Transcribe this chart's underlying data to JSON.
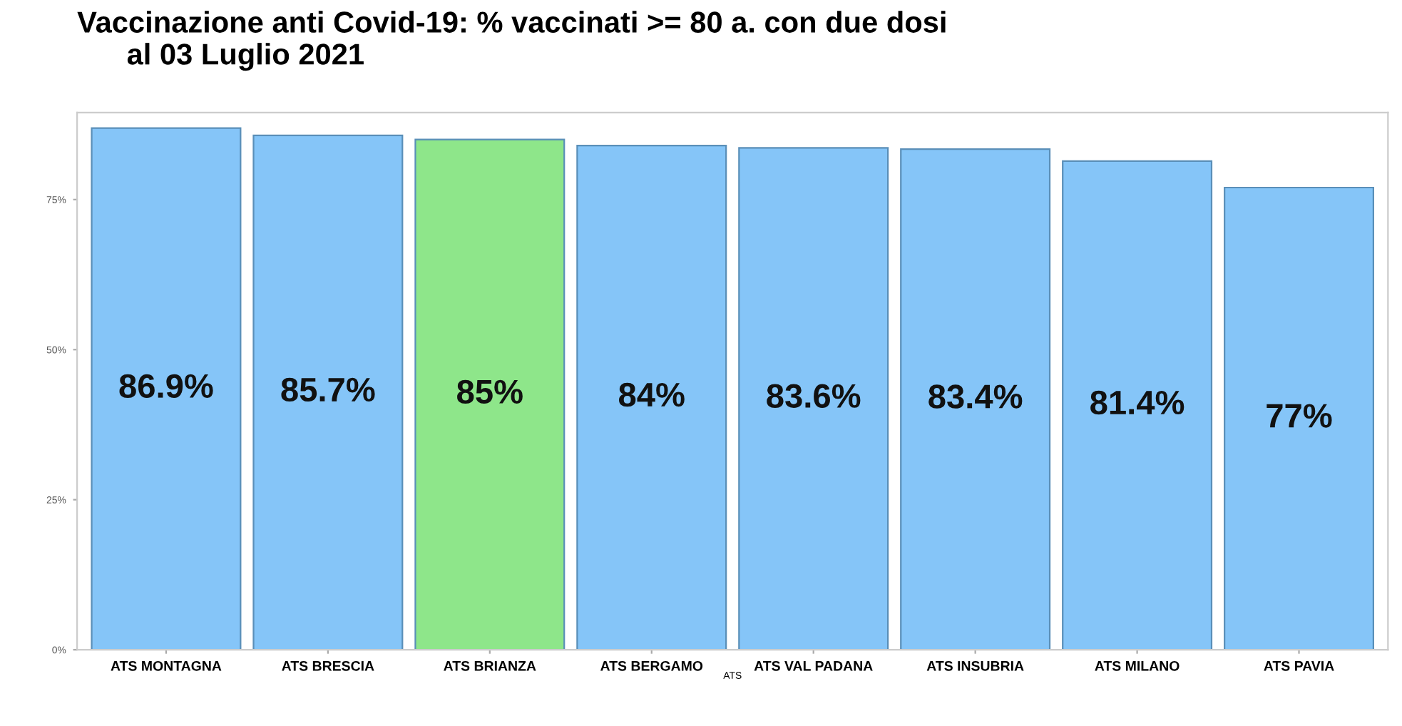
{
  "chart_data": {
    "type": "bar",
    "title": "Vaccinazione anti Covid-19: % vaccinati >= 80 a. con due dosi\n      al 03 Luglio 2021",
    "xlabel": "ATS",
    "categories": [
      "ATS MONTAGNA",
      "ATS BRESCIA",
      "ATS BRIANZA",
      "ATS BERGAMO",
      "ATS VAL PADANA",
      "ATS INSUBRIA",
      "ATS MILANO",
      "ATS PAVIA"
    ],
    "values": [
      86.9,
      85.7,
      85,
      84,
      83.6,
      83.4,
      81.4,
      77
    ],
    "colors": [
      "#85c5f8",
      "#85c5f8",
      "#8ee68a",
      "#85c5f8",
      "#85c5f8",
      "#85c5f8",
      "#85c5f8",
      "#85c5f8"
    ],
    "value_labels": [
      "86.9%",
      "85.7%",
      "85%",
      "84%",
      "83.6%",
      "83.4%",
      "81.4%",
      "77%"
    ],
    "ylim": [
      0,
      89.5
    ],
    "yticks": [
      {
        "value": 0,
        "label": "0%"
      },
      {
        "value": 25,
        "label": "25%"
      },
      {
        "value": 50,
        "label": "50%"
      },
      {
        "value": 75,
        "label": "75%"
      }
    ],
    "grid": false
  }
}
